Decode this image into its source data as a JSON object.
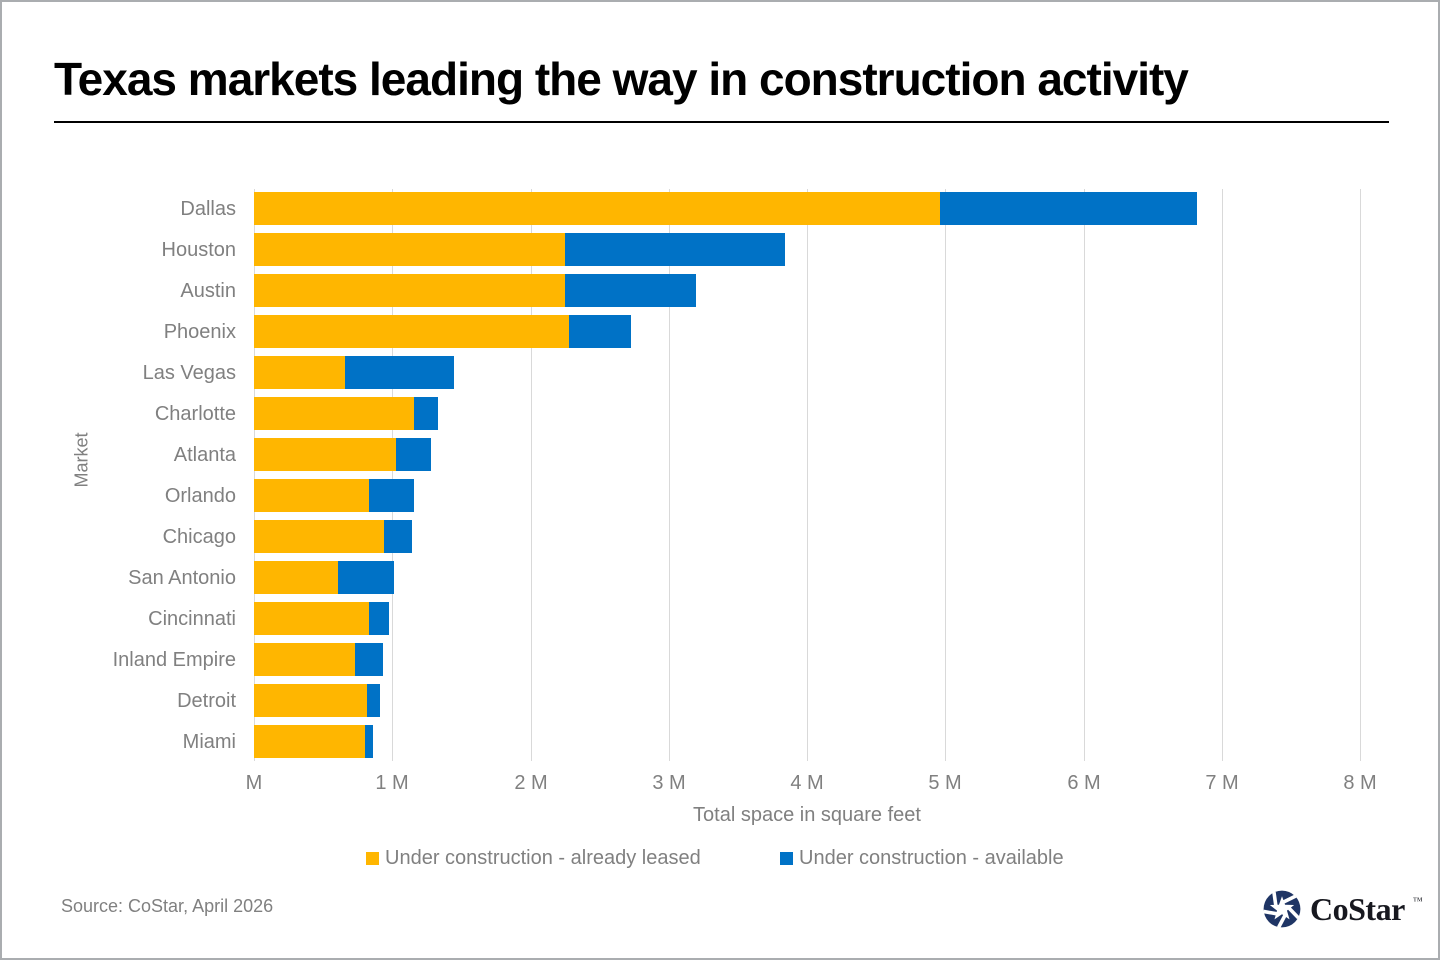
{
  "title": "Texas markets leading the way in construction activity",
  "source": "Source: CoStar, April 2026",
  "logo": {
    "text": "CoStar",
    "tm": "TM"
  },
  "colors": {
    "leased": "#FFB600",
    "available": "#0072C6",
    "grid": "#D9D9D9",
    "axis_text": "#808080",
    "logo_navy": "#1F3565"
  },
  "chart_data": {
    "type": "bar",
    "orientation": "horizontal",
    "stacked": true,
    "title": "Texas markets leading the way in construction activity",
    "xlabel": "Total space in square feet",
    "ylabel": "Market",
    "x_unit": "millions of square feet",
    "xlim": [
      0,
      8
    ],
    "xticks": [
      "M",
      "1 M",
      "2 M",
      "3 M",
      "4 M",
      "5 M",
      "6 M",
      "7 M",
      "8 M"
    ],
    "grid": true,
    "legend_position": "bottom",
    "categories": [
      "Dallas",
      "Houston",
      "Austin",
      "Phoenix",
      "Las Vegas",
      "Charlotte",
      "Atlanta",
      "Orlando",
      "Chicago",
      "San Antonio",
      "Cincinnati",
      "Inland Empire",
      "Detroit",
      "Miami"
    ],
    "series": [
      {
        "name": "Under construction - already leased",
        "color": "#FFB600",
        "values": [
          4.96,
          2.25,
          2.25,
          2.28,
          0.66,
          1.16,
          1.03,
          0.83,
          0.94,
          0.61,
          0.83,
          0.73,
          0.82,
          0.8
        ]
      },
      {
        "name": "Under construction - available",
        "color": "#0072C6",
        "values": [
          1.86,
          1.59,
          0.95,
          0.45,
          0.79,
          0.17,
          0.25,
          0.33,
          0.2,
          0.4,
          0.15,
          0.2,
          0.09,
          0.06
        ]
      }
    ]
  }
}
